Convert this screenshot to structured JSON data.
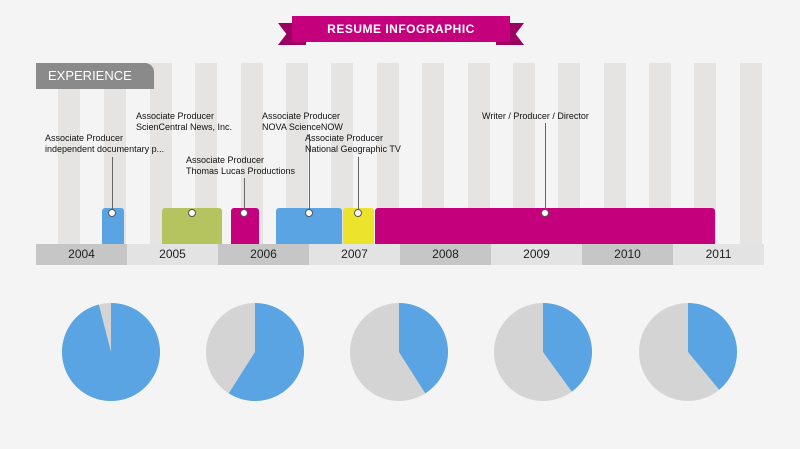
{
  "header": {
    "title": "RESUME INFOGRAPHIC",
    "section_label": "EXPERIENCE"
  },
  "colors": {
    "brand": "#c4007c",
    "blue": "#5aa4e3",
    "green": "#b5c45e",
    "yellow": "#ece42a",
    "stripe": "#e5e4e2",
    "year_dark": "#c6c6c6",
    "year_light": "#e3e3e3",
    "pie_rest": "#d4d4d4"
  },
  "timeline": {
    "years": [
      "2004",
      "2005",
      "2006",
      "2007",
      "2008",
      "2009",
      "2010",
      "2011"
    ],
    "roles": [
      {
        "line1": "Associate Producer",
        "line2": "independent documentary p...",
        "color": "blue"
      },
      {
        "line1": "Associate Producer",
        "line2": "ScienCentral News, Inc.",
        "color": "green"
      },
      {
        "line1": "Associate Producer",
        "line2": "Thomas Lucas Productions",
        "color": "brand"
      },
      {
        "line1": "Associate Producer",
        "line2": "NOVA ScienceNOW",
        "color": "blue"
      },
      {
        "line1": "Associate Producer",
        "line2": "National Geographic TV",
        "color": "yellow"
      },
      {
        "line1": "Writer / Producer / Director",
        "line2": "",
        "color": "brand"
      }
    ]
  },
  "pies": [
    {
      "fraction": 0.96,
      "color": "blue"
    },
    {
      "fraction": 0.59,
      "color": "blue"
    },
    {
      "fraction": 0.41,
      "color": "blue"
    },
    {
      "fraction": 0.4,
      "color": "blue"
    },
    {
      "fraction": 0.39,
      "color": "blue"
    }
  ]
}
